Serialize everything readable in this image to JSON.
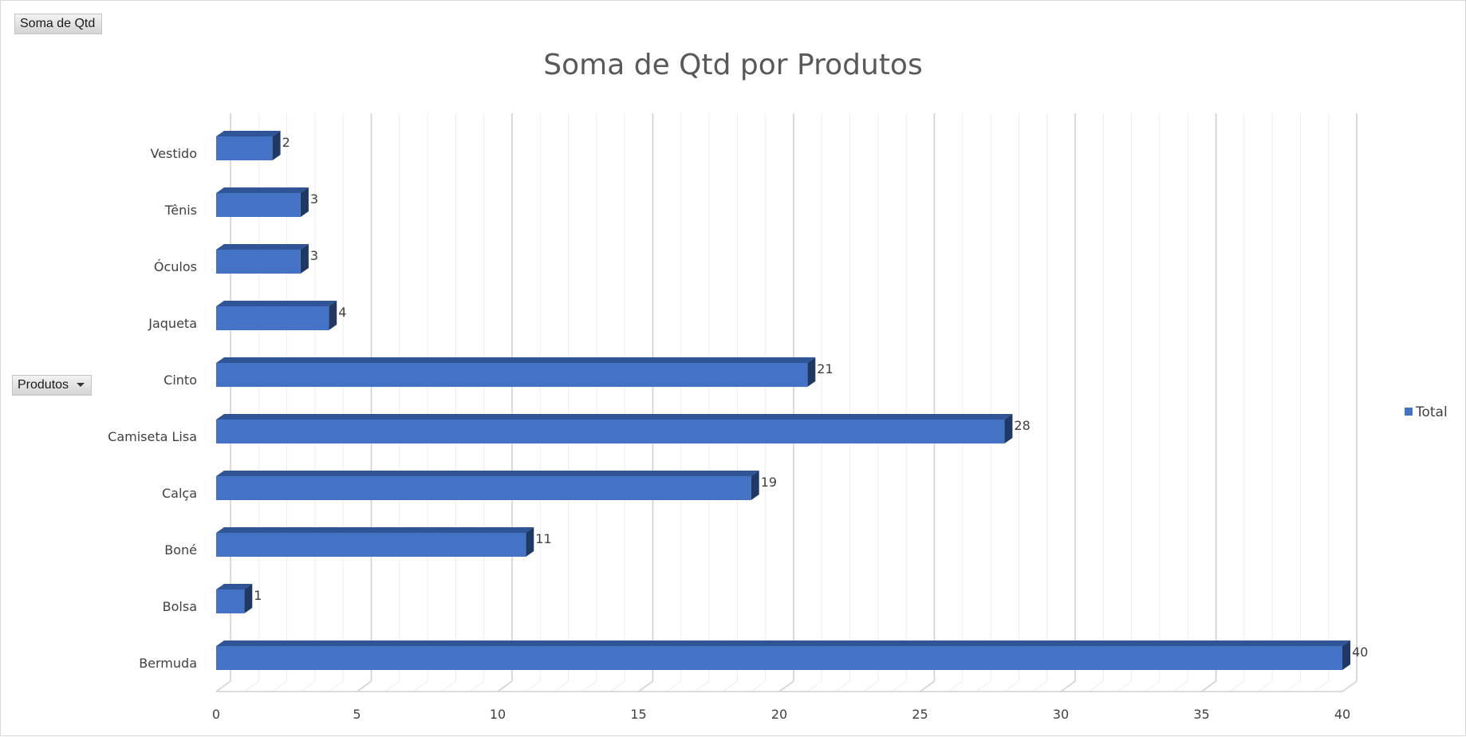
{
  "pivot": {
    "value_field_label": "Soma de Qtd",
    "axis_field_label": "Produtos"
  },
  "colors": {
    "bar_front": "#4472c4",
    "bar_top": "#2f5597",
    "bar_side": "#203864",
    "gridline_major": "#d0d0d0",
    "gridline_minor": "#ececec",
    "label_text": "#404040"
  },
  "chart_data": {
    "type": "bar",
    "orientation": "horizontal",
    "style": "3d-clustered",
    "title": "Soma de Qtd por Produtos",
    "categories": [
      "Bermuda",
      "Bolsa",
      "Boné",
      "Calça",
      "Camiseta Lisa",
      "Cinto",
      "Jaqueta",
      "Óculos",
      "Tênis",
      "Vestido"
    ],
    "series": [
      {
        "name": "Total",
        "values": [
          40,
          1,
          11,
          19,
          28,
          21,
          4,
          3,
          3,
          2
        ]
      }
    ],
    "xlim": [
      0,
      40
    ],
    "x_ticks": [
      0,
      5,
      10,
      15,
      20,
      25,
      30,
      35,
      40
    ],
    "x_minor_step": 1,
    "grid": true,
    "data_labels": true,
    "legend_position": "right"
  }
}
